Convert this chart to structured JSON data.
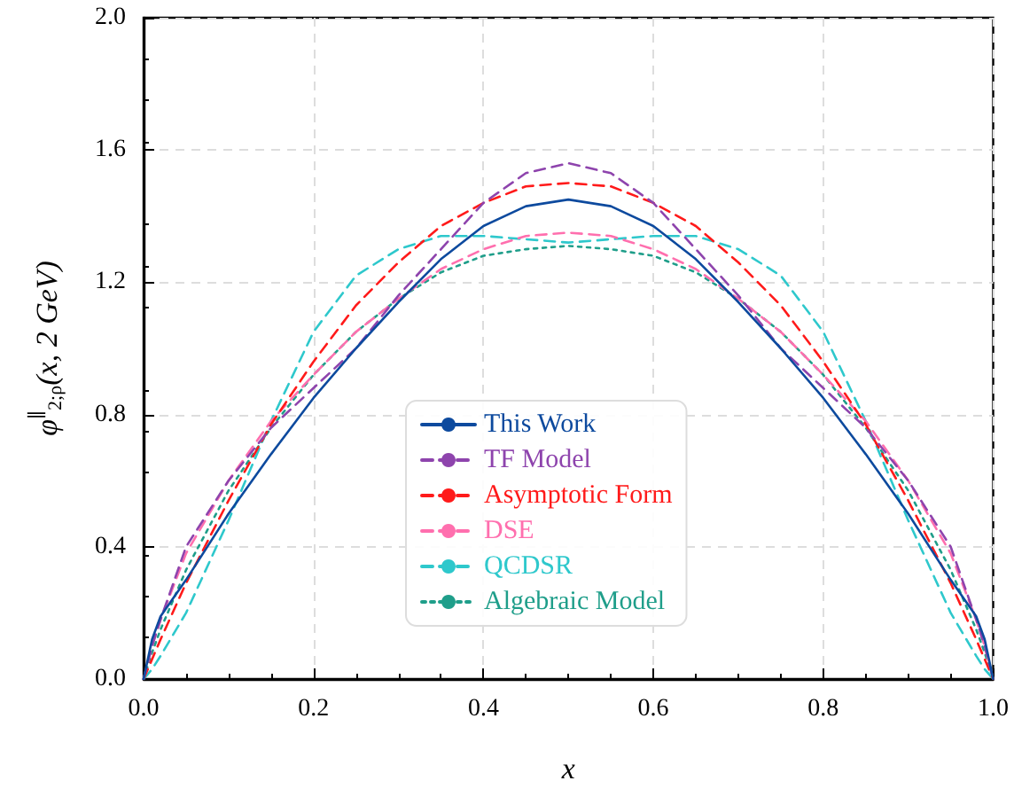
{
  "chart_data": {
    "type": "line",
    "xlabel": "x",
    "ylabel": "φ$^{∥}$$_{2;ρ}$(x, 2 GeV)",
    "x": [
      0,
      0.01,
      0.02,
      0.05,
      0.1,
      0.15,
      0.2,
      0.25,
      0.3,
      0.35,
      0.4,
      0.45,
      0.5,
      0.55,
      0.6,
      0.65,
      0.7,
      0.75,
      0.8,
      0.85,
      0.9,
      0.95,
      0.98,
      0.99,
      1
    ],
    "series": [
      {
        "name": "This Work",
        "color": "#0d4a9e",
        "line_style": "solid",
        "values": [
          0,
          0.12,
          0.19,
          0.3,
          0.5,
          0.68,
          0.85,
          1.0,
          1.14,
          1.27,
          1.37,
          1.43,
          1.45,
          1.43,
          1.37,
          1.27,
          1.14,
          1.0,
          0.85,
          0.68,
          0.5,
          0.3,
          0.19,
          0.12,
          0
        ]
      },
      {
        "name": "TF Model",
        "color": "#8e44ad",
        "line_style": "dashed",
        "values": [
          0,
          0.1,
          0.18,
          0.4,
          0.6,
          0.76,
          0.88,
          1.0,
          1.16,
          1.3,
          1.44,
          1.53,
          1.56,
          1.53,
          1.44,
          1.3,
          1.16,
          1.0,
          0.88,
          0.76,
          0.6,
          0.4,
          0.18,
          0.1,
          0
        ]
      },
      {
        "name": "Asymptotic Form",
        "color": "#ff1a1a",
        "line_style": "dashed",
        "values": [
          0,
          0.06,
          0.12,
          0.29,
          0.54,
          0.77,
          0.96,
          1.13,
          1.26,
          1.37,
          1.44,
          1.49,
          1.5,
          1.49,
          1.44,
          1.37,
          1.26,
          1.13,
          0.96,
          0.77,
          0.54,
          0.29,
          0.12,
          0.06,
          0
        ]
      },
      {
        "name": "DSE",
        "color": "#ff6fae",
        "line_style": "dashed",
        "values": [
          0,
          0.1,
          0.18,
          0.38,
          0.6,
          0.78,
          0.92,
          1.05,
          1.15,
          1.24,
          1.3,
          1.34,
          1.35,
          1.34,
          1.3,
          1.24,
          1.15,
          1.05,
          0.92,
          0.78,
          0.6,
          0.38,
          0.18,
          0.1,
          0
        ]
      },
      {
        "name": "QCDSR",
        "color": "#2ec8cc",
        "line_style": "dashed",
        "values": [
          0,
          0.03,
          0.07,
          0.2,
          0.48,
          0.78,
          1.05,
          1.22,
          1.3,
          1.34,
          1.34,
          1.33,
          1.32,
          1.33,
          1.34,
          1.34,
          1.3,
          1.22,
          1.05,
          0.78,
          0.48,
          0.2,
          0.07,
          0.03,
          0
        ]
      },
      {
        "name": "Algebraic Model",
        "color": "#1f9e8a",
        "line_style": "dotted",
        "values": [
          0,
          0.08,
          0.15,
          0.33,
          0.57,
          0.76,
          0.92,
          1.05,
          1.15,
          1.23,
          1.28,
          1.3,
          1.31,
          1.3,
          1.28,
          1.23,
          1.15,
          1.05,
          0.92,
          0.76,
          0.57,
          0.33,
          0.15,
          0.08,
          0
        ]
      }
    ],
    "xlim": [
      0,
      1
    ],
    "xticks": [
      {
        "value": 0,
        "label": "0.0"
      },
      {
        "value": 0.2,
        "label": "0.2"
      },
      {
        "value": 0.4,
        "label": "0.4"
      },
      {
        "value": 0.6,
        "label": "0.6"
      },
      {
        "value": 0.8,
        "label": "0.8"
      },
      {
        "value": 1,
        "label": "1.0"
      }
    ],
    "ylim": [
      0,
      2
    ],
    "yticks": [
      {
        "value": 0,
        "label": "0.0"
      },
      {
        "value": 0.4,
        "label": "0.4"
      },
      {
        "value": 0.8,
        "label": "0.8"
      },
      {
        "value": 1.2,
        "label": "1.2"
      },
      {
        "value": 1.6,
        "label": "1.6"
      },
      {
        "value": 2,
        "label": "2.0"
      }
    ],
    "grid": true,
    "legend": "bottom",
    "marker": "none"
  }
}
